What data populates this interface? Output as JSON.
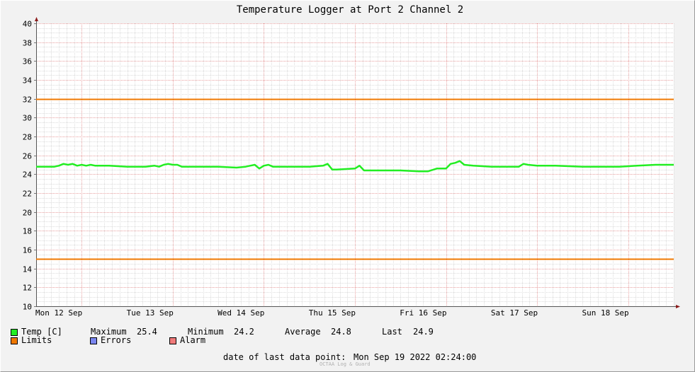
{
  "chart_data": {
    "type": "line",
    "title": "Temperature Logger at Port 2 Channel 2",
    "y_ticks": [
      "10",
      "12",
      "14",
      "16",
      "18",
      "20",
      "22",
      "24",
      "26",
      "28",
      "30",
      "32",
      "34",
      "36",
      "38",
      "40"
    ],
    "ylim": [
      10,
      40
    ],
    "x_labels": [
      "Mon 12 Sep",
      "Tue 13 Sep",
      "Wed 14 Sep",
      "Thu 15 Sep",
      "Fri 16 Sep",
      "Sat 17 Sep",
      "Sun 18 Sep"
    ],
    "xlim_days": [
      0,
      7
    ],
    "grid": true,
    "limits": {
      "name": "Limits",
      "color": "#f07800",
      "values": [
        32,
        15
      ]
    },
    "series": [
      {
        "name": "Temp [C]",
        "color": "#22ee22",
        "x_days": [
          0.0,
          0.2,
          0.25,
          0.3,
          0.35,
          0.4,
          0.45,
          0.5,
          0.55,
          0.6,
          0.65,
          0.7,
          0.75,
          0.8,
          1.0,
          1.2,
          1.3,
          1.35,
          1.4,
          1.45,
          1.5,
          1.55,
          1.6,
          1.7,
          2.0,
          2.2,
          2.3,
          2.35,
          2.4,
          2.45,
          2.5,
          2.55,
          2.6,
          2.7,
          3.0,
          3.15,
          3.2,
          3.25,
          3.3,
          3.5,
          3.55,
          3.6,
          3.65,
          3.8,
          4.0,
          4.2,
          4.25,
          4.3,
          4.4,
          4.5,
          4.55,
          4.6,
          4.65,
          4.7,
          4.8,
          5.0,
          5.2,
          5.3,
          5.35,
          5.4,
          5.5,
          5.6,
          5.7,
          6.0,
          6.2,
          6.4,
          6.6,
          6.8,
          7.0
        ],
        "values": [
          24.8,
          24.8,
          24.9,
          25.1,
          25.0,
          25.1,
          24.9,
          25.0,
          24.9,
          25.0,
          24.9,
          24.9,
          24.9,
          24.9,
          24.8,
          24.8,
          24.9,
          24.8,
          25.0,
          25.1,
          25.0,
          25.0,
          24.8,
          24.8,
          24.8,
          24.7,
          24.8,
          24.9,
          25.0,
          24.6,
          24.9,
          25.0,
          24.8,
          24.8,
          24.8,
          24.9,
          25.1,
          24.5,
          24.5,
          24.6,
          24.9,
          24.4,
          24.4,
          24.4,
          24.4,
          24.3,
          24.3,
          24.3,
          24.6,
          24.6,
          25.1,
          25.2,
          25.4,
          25.0,
          24.9,
          24.8,
          24.8,
          24.8,
          25.1,
          25.0,
          24.9,
          24.9,
          24.9,
          24.8,
          24.8,
          24.8,
          24.9,
          25.0,
          25.0
        ]
      }
    ]
  },
  "legend": {
    "temp_label": "Temp [C]",
    "max_label": "Maximum",
    "max_value": "25.4",
    "min_label": "Minimum",
    "min_value": "24.2",
    "avg_label": "Average",
    "avg_value": "24.8",
    "last_label": "Last",
    "last_value": "24.9",
    "limits_label": "Limits",
    "errors_label": "Errors",
    "alarm_label": "Alarm",
    "colors": {
      "temp": "#22ee22",
      "limits": "#f07800",
      "errors": "#7a86f0",
      "alarm": "#f07a7a"
    }
  },
  "footer": {
    "date_label": "date of last data point:",
    "date_value": "Mon Sep 19 2022 02:24:00",
    "watermark": "OCTAA Log & Guard"
  }
}
